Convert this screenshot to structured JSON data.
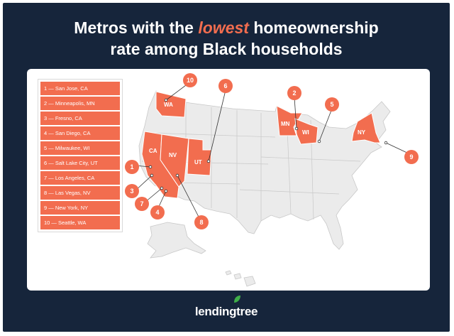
{
  "title": {
    "pre": "Metros with the ",
    "emphasis": "lowest",
    "post": " homeownership",
    "line2": "rate among Black households"
  },
  "legend": [
    {
      "rank": "1",
      "text": "1 — San Jose, CA"
    },
    {
      "rank": "2",
      "text": "2 — Minneapolis, MN"
    },
    {
      "rank": "3",
      "text": "3 — Fresno, CA"
    },
    {
      "rank": "4",
      "text": "4 — San Diego, CA"
    },
    {
      "rank": "5",
      "text": "5 — Milwaukee, WI"
    },
    {
      "rank": "6",
      "text": "6 — Salt Lake City, UT"
    },
    {
      "rank": "7",
      "text": "7 — Los Angeles, CA"
    },
    {
      "rank": "8",
      "text": "8 — Las Vegas, NV"
    },
    {
      "rank": "9",
      "text": "9 — New York, NY"
    },
    {
      "rank": "10",
      "text": "10 — Seattle, WA"
    }
  ],
  "states": {
    "wa": "WA",
    "ca": "CA",
    "nv": "NV",
    "ut": "UT",
    "mn": "MN",
    "wi": "WI",
    "ny": "NY"
  },
  "markers": [
    "1",
    "2",
    "3",
    "4",
    "5",
    "6",
    "7",
    "8",
    "9",
    "10"
  ],
  "brand": "lendingtree",
  "colors": {
    "background": "#16253b",
    "highlight": "#f26d4f",
    "land": "#ebebeb",
    "accent_logo": "#3fae49"
  }
}
